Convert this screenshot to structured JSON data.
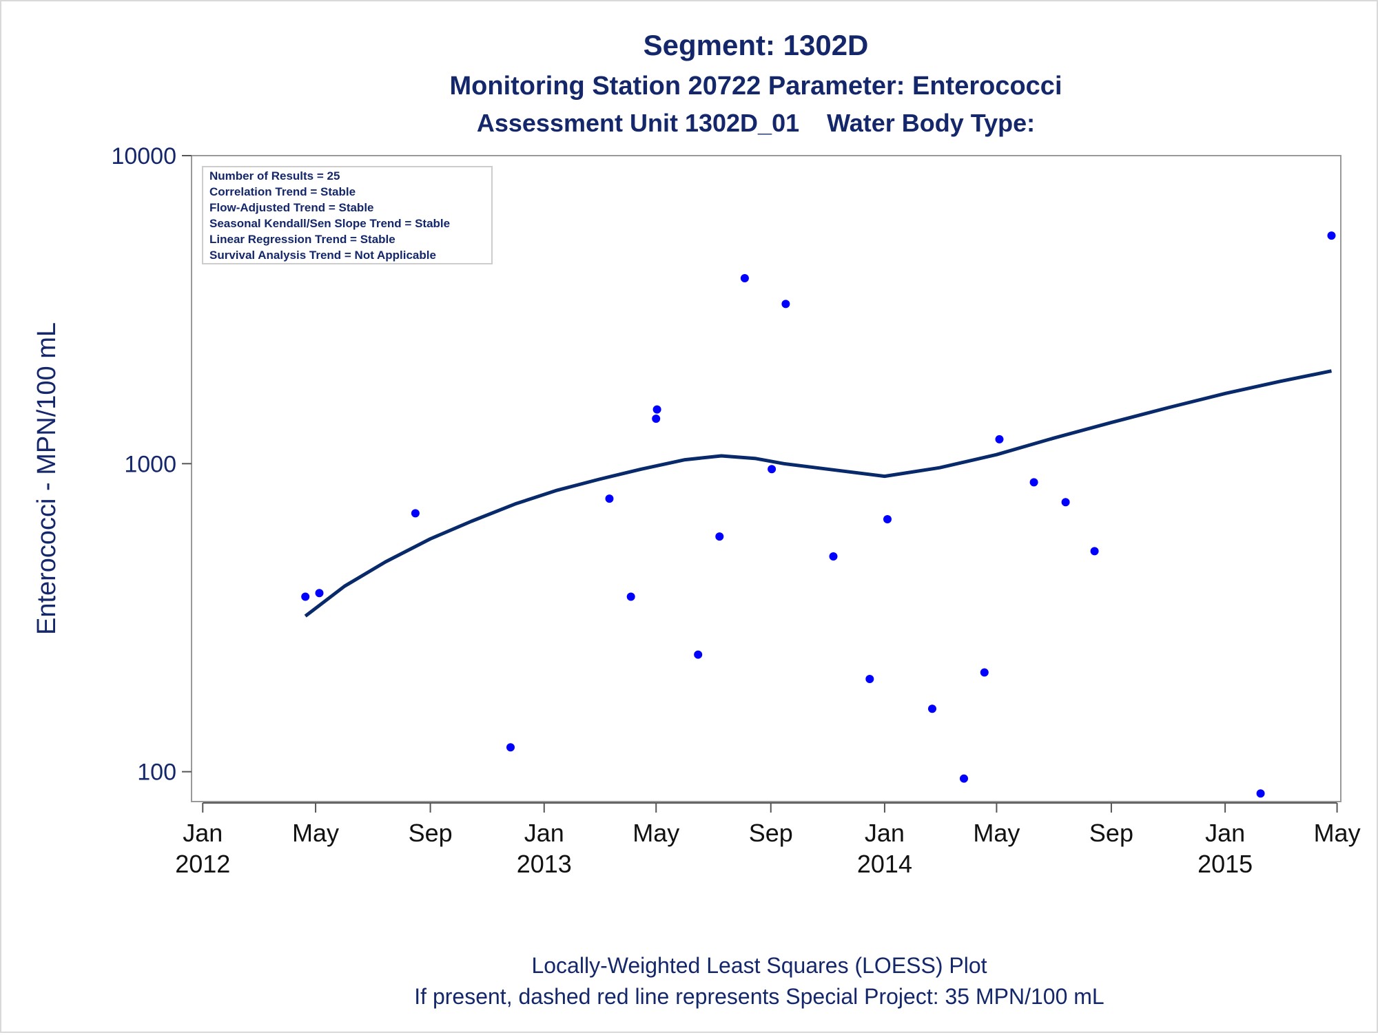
{
  "chart_data": {
    "type": "scatter",
    "title": "Segment: 1302D",
    "subtitle_1": "Monitoring Station 20722 Parameter: Enterococci",
    "subtitle_2": "Assessment Unit 1302D_01    Water Body Type:",
    "ylabel": "Enterococci - MPN/100 mL",
    "y_scale": "log",
    "ylim": [
      80,
      10000
    ],
    "xlim": [
      "2011-12-20",
      "2015-05-05"
    ],
    "y_ticks": [
      {
        "value": 100,
        "label": "100"
      },
      {
        "value": 1000,
        "label": "1000"
      },
      {
        "value": 10000,
        "label": "10000"
      }
    ],
    "x_ticks": [
      {
        "date": "2012-01-01",
        "month": "Jan",
        "year": "2012"
      },
      {
        "date": "2012-05-01",
        "month": "May",
        "year": ""
      },
      {
        "date": "2012-09-01",
        "month": "Sep",
        "year": ""
      },
      {
        "date": "2013-01-01",
        "month": "Jan",
        "year": "2013"
      },
      {
        "date": "2013-05-01",
        "month": "May",
        "year": ""
      },
      {
        "date": "2013-09-01",
        "month": "Sep",
        "year": ""
      },
      {
        "date": "2014-01-01",
        "month": "Jan",
        "year": "2014"
      },
      {
        "date": "2014-05-01",
        "month": "May",
        "year": ""
      },
      {
        "date": "2014-09-01",
        "month": "Sep",
        "year": ""
      },
      {
        "date": "2015-01-01",
        "month": "Jan",
        "year": "2015"
      },
      {
        "date": "2015-05-01",
        "month": "May",
        "year": ""
      }
    ],
    "points": [
      {
        "x": "2012-04-20",
        "y": 370
      },
      {
        "x": "2012-05-05",
        "y": 380
      },
      {
        "x": "2012-08-16",
        "y": 690
      },
      {
        "x": "2012-11-26",
        "y": 120
      },
      {
        "x": "2013-03-12",
        "y": 770
      },
      {
        "x": "2013-04-04",
        "y": 370
      },
      {
        "x": "2013-05-01",
        "y": 1400
      },
      {
        "x": "2013-05-02",
        "y": 1500
      },
      {
        "x": "2013-06-15",
        "y": 240
      },
      {
        "x": "2013-07-08",
        "y": 580
      },
      {
        "x": "2013-08-04",
        "y": 4000
      },
      {
        "x": "2013-09-02",
        "y": 960
      },
      {
        "x": "2013-09-17",
        "y": 3300
      },
      {
        "x": "2013-11-07",
        "y": 500
      },
      {
        "x": "2013-12-16",
        "y": 200
      },
      {
        "x": "2014-01-04",
        "y": 660
      },
      {
        "x": "2014-02-21",
        "y": 160
      },
      {
        "x": "2014-03-27",
        "y": 95
      },
      {
        "x": "2014-04-18",
        "y": 210
      },
      {
        "x": "2014-05-04",
        "y": 1200
      },
      {
        "x": "2014-06-10",
        "y": 870
      },
      {
        "x": "2014-07-14",
        "y": 750
      },
      {
        "x": "2014-08-14",
        "y": 520
      },
      {
        "x": "2015-02-08",
        "y": 85
      },
      {
        "x": "2015-04-25",
        "y": 5500
      }
    ],
    "loess": [
      {
        "x": "2012-04-20",
        "y": 320
      },
      {
        "x": "2012-06-01",
        "y": 400
      },
      {
        "x": "2012-07-15",
        "y": 480
      },
      {
        "x": "2012-09-01",
        "y": 570
      },
      {
        "x": "2012-10-15",
        "y": 650
      },
      {
        "x": "2012-12-01",
        "y": 740
      },
      {
        "x": "2013-01-15",
        "y": 820
      },
      {
        "x": "2013-03-01",
        "y": 890
      },
      {
        "x": "2013-04-15",
        "y": 960
      },
      {
        "x": "2013-06-01",
        "y": 1030
      },
      {
        "x": "2013-07-10",
        "y": 1060
      },
      {
        "x": "2013-08-15",
        "y": 1040
      },
      {
        "x": "2013-09-15",
        "y": 1000
      },
      {
        "x": "2013-11-01",
        "y": 960
      },
      {
        "x": "2014-01-01",
        "y": 910
      },
      {
        "x": "2014-03-01",
        "y": 970
      },
      {
        "x": "2014-05-01",
        "y": 1070
      },
      {
        "x": "2014-07-01",
        "y": 1210
      },
      {
        "x": "2014-09-01",
        "y": 1360
      },
      {
        "x": "2014-11-01",
        "y": 1520
      },
      {
        "x": "2015-01-01",
        "y": 1690
      },
      {
        "x": "2015-03-01",
        "y": 1850
      },
      {
        "x": "2015-04-25",
        "y": 2000
      }
    ],
    "point_color": "#0000ff",
    "line_color": "#082a6b",
    "text_color": "#14276a",
    "stats_box": [
      "Number of Results = 25",
      "Correlation Trend = Stable",
      "Flow-Adjusted Trend = Stable",
      "Seasonal Kendall/Sen Slope Trend = Stable",
      "Linear Regression Trend = Stable",
      "Survival Analysis Trend = Not Applicable"
    ],
    "footnote_1": "Locally-Weighted Least Squares (LOESS) Plot",
    "footnote_2": "If present, dashed red line represents Special Project: 35 MPN/100 mL",
    "grid": false,
    "legend": "none"
  }
}
